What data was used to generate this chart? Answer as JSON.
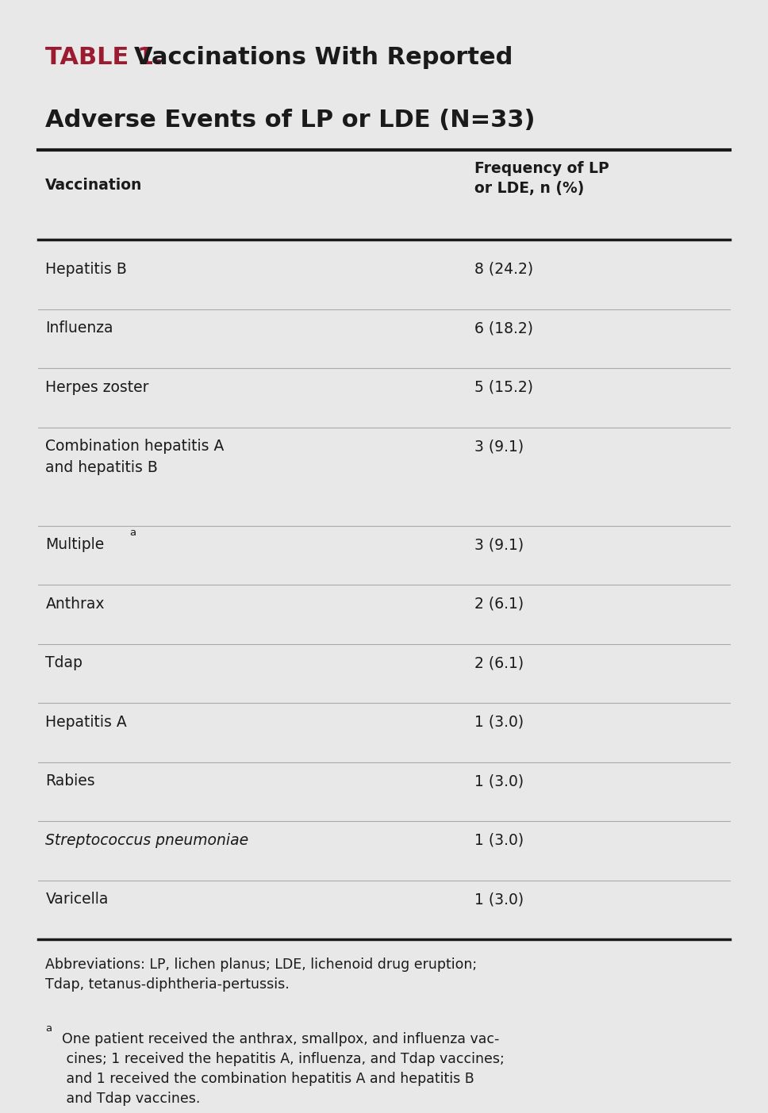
{
  "title_prefix": "TABLE 1.",
  "title_prefix_color": "#9B1B30",
  "title_color": "#1a1a1a",
  "bg_color": "#e8e8e8",
  "col1_header": "Vaccination",
  "col2_header": "Frequency of LP\nor LDE, n (%)",
  "rows": [
    {
      "col1": "Hepatitis B",
      "col2": "8 (24.2)",
      "italic": false,
      "superscript": false,
      "two_line": false
    },
    {
      "col1": "Influenza",
      "col2": "6 (18.2)",
      "italic": false,
      "superscript": false,
      "two_line": false
    },
    {
      "col1": "Herpes zoster",
      "col2": "5 (15.2)",
      "italic": false,
      "superscript": false,
      "two_line": false
    },
    {
      "col1": "Combination hepatitis A\nand hepatitis B",
      "col2": "3 (9.1)",
      "italic": false,
      "superscript": false,
      "two_line": true
    },
    {
      "col1": "Multiple",
      "col2": "3 (9.1)",
      "italic": false,
      "superscript": true,
      "two_line": false
    },
    {
      "col1": "Anthrax",
      "col2": "2 (6.1)",
      "italic": false,
      "superscript": false,
      "two_line": false
    },
    {
      "col1": "Tdap",
      "col2": "2 (6.1)",
      "italic": false,
      "superscript": false,
      "two_line": false
    },
    {
      "col1": "Hepatitis A",
      "col2": "1 (3.0)",
      "italic": false,
      "superscript": false,
      "two_line": false
    },
    {
      "col1": "Rabies",
      "col2": "1 (3.0)",
      "italic": false,
      "superscript": false,
      "two_line": false
    },
    {
      "col1": "Streptococcus pneumoniae",
      "col2": "1 (3.0)",
      "italic": true,
      "superscript": false,
      "two_line": false
    },
    {
      "col1": "Varicella",
      "col2": "1 (3.0)",
      "italic": false,
      "superscript": false,
      "two_line": false
    }
  ],
  "footnote1": "Abbreviations: LP, lichen planus; LDE, lichenoid drug eruption;\nTdap, tetanus-diphtheria-pertussis.",
  "footnote2_super": "a",
  "footnote2": "One patient received the anthrax, smallpox, and influenza vac-\n cines; 1 received the hepatitis A, influenza, and Tdap vaccines;\n and 1 received the combination hepatitis A and hepatitis B\n and Tdap vaccines.",
  "font_family": "DejaVu Sans",
  "title_fontsize": 22,
  "header_fontsize": 13.5,
  "row_fontsize": 13.5,
  "footnote_fontsize": 12.5
}
